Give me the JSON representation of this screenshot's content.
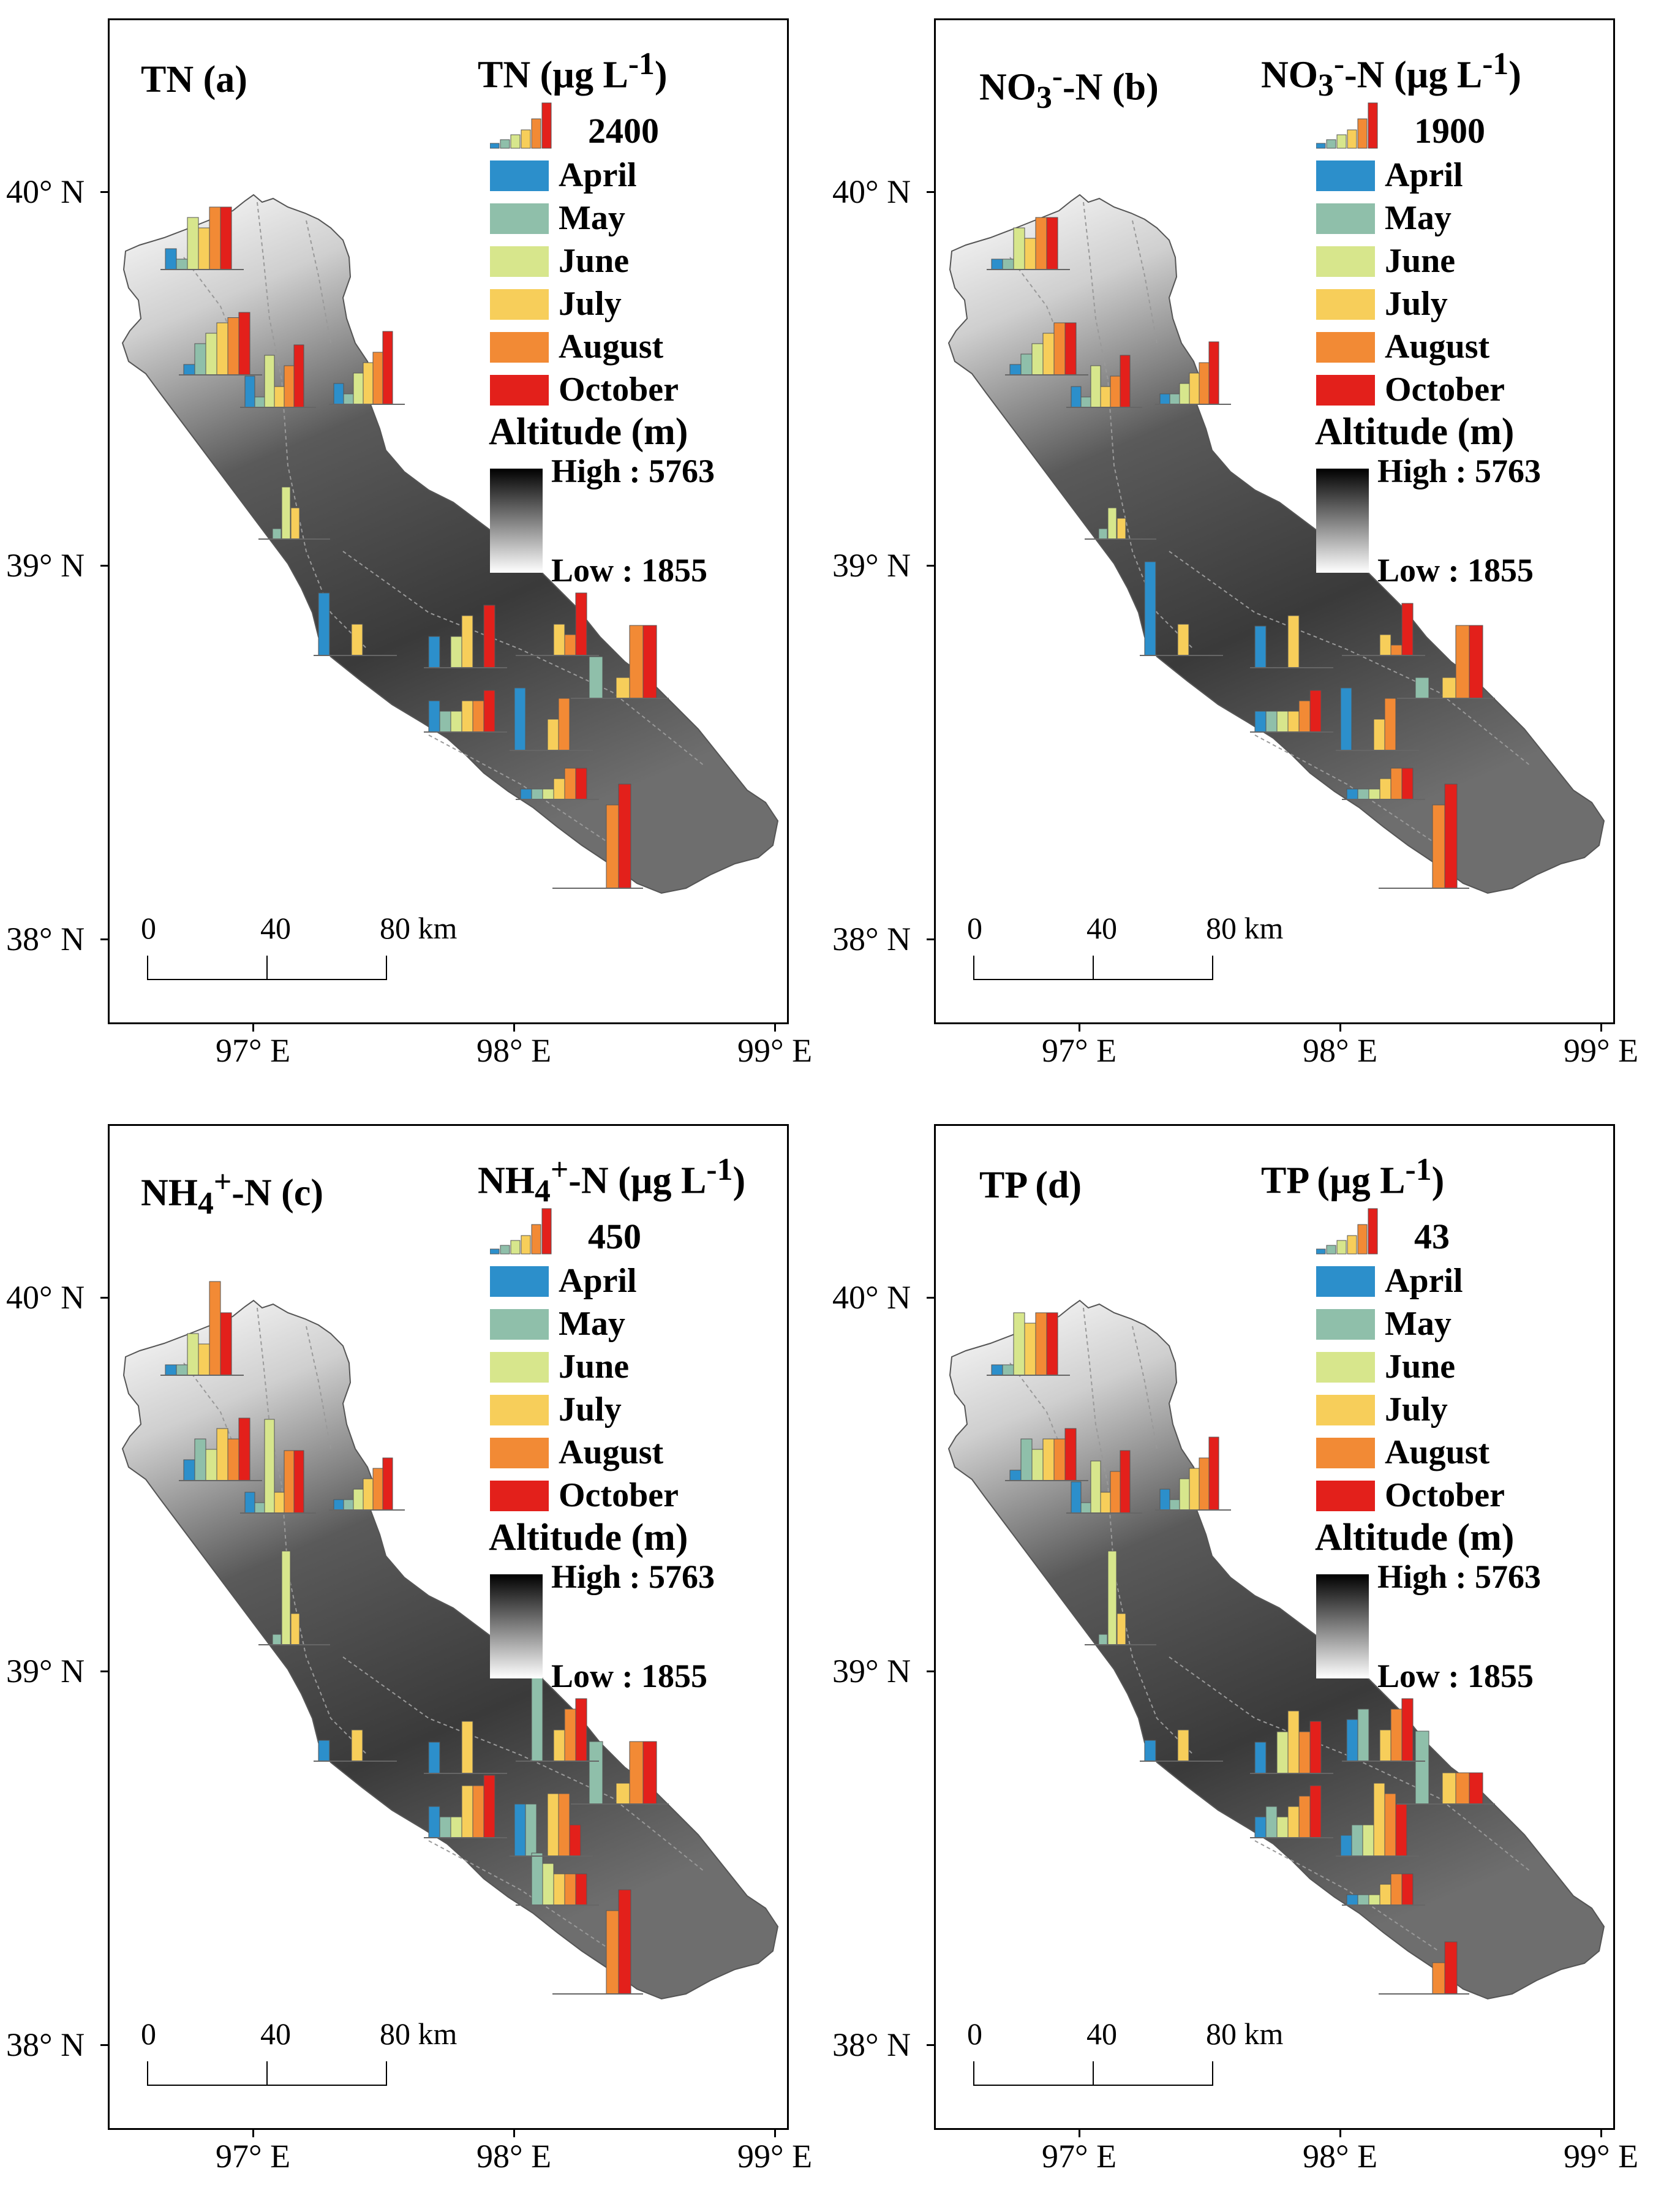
{
  "months": [
    {
      "label": "April",
      "color": "#2c8fcb"
    },
    {
      "label": "May",
      "color": "#8fbfaa"
    },
    {
      "label": "June",
      "color": "#d7e68c"
    },
    {
      "label": "July",
      "color": "#f7ce5a"
    },
    {
      "label": "August",
      "color": "#f28a35"
    },
    {
      "label": "October",
      "color": "#e3201b"
    }
  ],
  "altitude": {
    "title": "Altitude (m)",
    "high_label": "High : 5763",
    "low_label": "Low : 1855",
    "high": 5763,
    "low": 1855
  },
  "latitude_labels": [
    "40° N",
    "39° N",
    "38° N"
  ],
  "longitude_labels": [
    "97° E",
    "98° E",
    "99° E"
  ],
  "scale_bar": {
    "labels": [
      "0",
      "40",
      "80 km"
    ]
  },
  "panels": [
    {
      "id": "a",
      "title": "TN (a)",
      "legend_title": "TN (µg L<sup>-1</sup>)",
      "legend_max": "2400"
    },
    {
      "id": "b",
      "title": "NO<sub>3</sub><sup>-</sup>-N (b)",
      "legend_title": "NO<sub>3</sub><sup>-</sup>-N (µg L<sup>-1</sup>)",
      "legend_max": "1900"
    },
    {
      "id": "c",
      "title": "NH<sub>4</sub><sup>+</sup>-N (c)",
      "legend_title": "NH<sub>4</sub><sup>+</sup>-N (µg L<sup>-1</sup>)",
      "legend_max": "450"
    },
    {
      "id": "d",
      "title": "TP (d)",
      "legend_title": "TP (µg L<sup>-1</sup>)",
      "legend_max": "43"
    }
  ]
}
